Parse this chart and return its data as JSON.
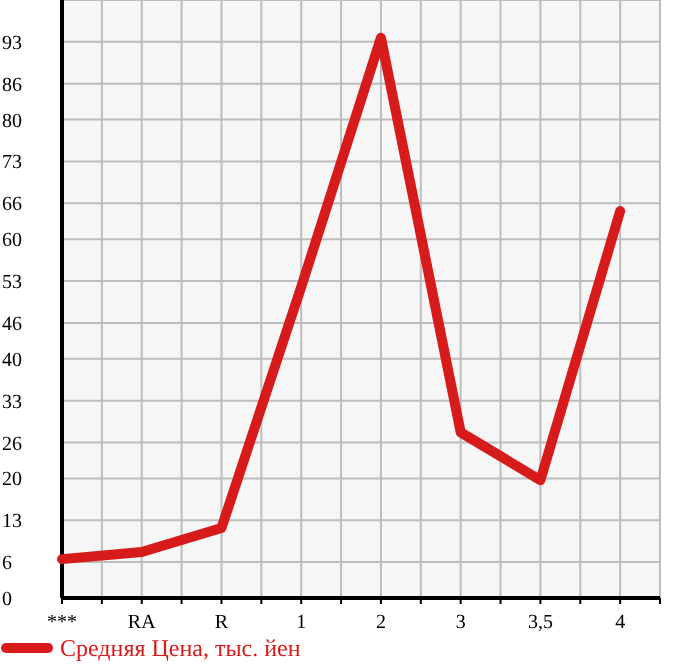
{
  "chart_data": {
    "type": "line",
    "categories": [
      "***",
      "RA",
      "R",
      "1",
      "2",
      "3",
      "3,5",
      "4"
    ],
    "series": [
      {
        "name": "Средняя Цена, тыс. йен",
        "color": "#d71a1a",
        "values": [
          6.5,
          7.7,
          11.7,
          52,
          93.7,
          27.7,
          19.7,
          64.7
        ]
      }
    ],
    "ylim": [
      0,
      100
    ],
    "yticks": [
      0,
      6,
      13,
      20,
      26,
      33,
      40,
      46,
      53,
      60,
      66,
      73,
      80,
      86,
      93
    ],
    "grid": true,
    "legend": "bottom",
    "marker": "none",
    "line_style": "solid"
  }
}
